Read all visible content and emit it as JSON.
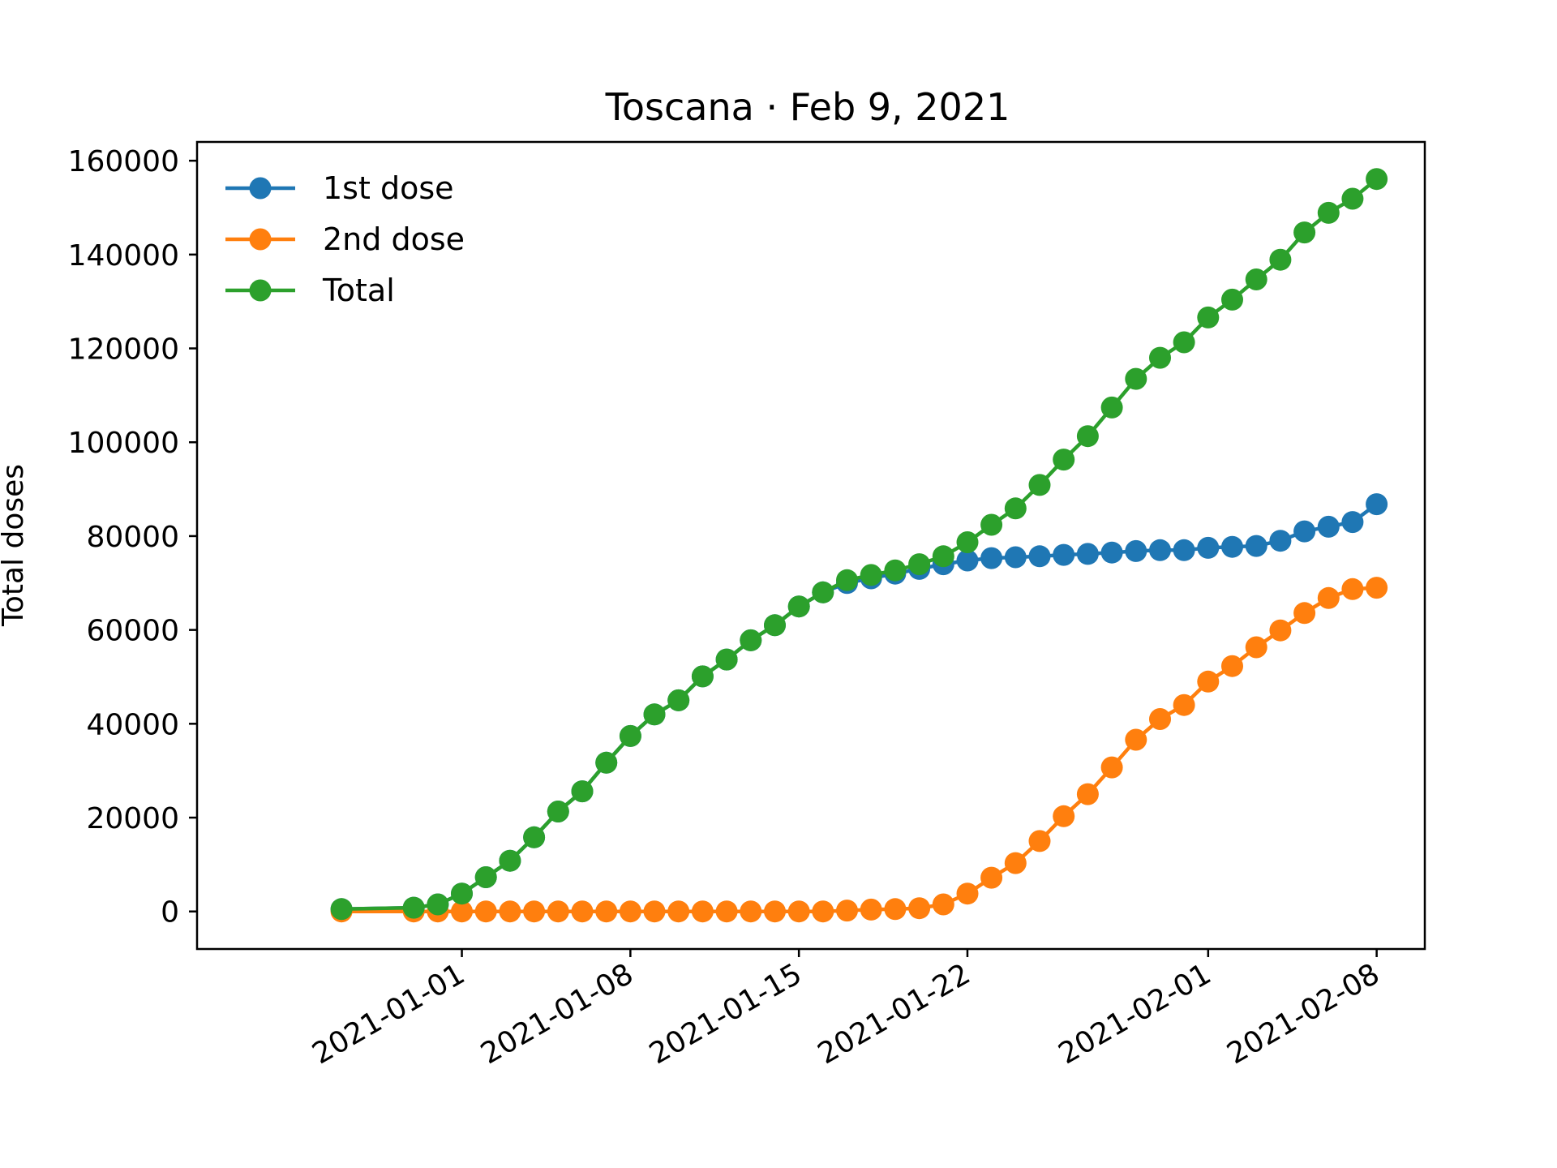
{
  "chart_data": {
    "type": "line",
    "title": "Toscana · Feb 9, 2021",
    "xlabel": "",
    "ylabel": "Total doses",
    "x_axis_type": "date",
    "xlim": [
      "2020-12-21",
      "2021-02-10"
    ],
    "ylim": [
      -8000,
      164000
    ],
    "xticks": [
      "2021-01-01",
      "2021-01-08",
      "2021-01-15",
      "2021-01-22",
      "2021-02-01",
      "2021-02-08"
    ],
    "yticks": [
      0,
      20000,
      40000,
      60000,
      80000,
      100000,
      120000,
      140000,
      160000
    ],
    "legend": {
      "position": "upper-left"
    },
    "grid": false,
    "x": [
      "2020-12-27",
      "2020-12-30",
      "2020-12-31",
      "2021-01-01",
      "2021-01-02",
      "2021-01-03",
      "2021-01-04",
      "2021-01-05",
      "2021-01-06",
      "2021-01-07",
      "2021-01-08",
      "2021-01-09",
      "2021-01-10",
      "2021-01-11",
      "2021-01-12",
      "2021-01-13",
      "2021-01-14",
      "2021-01-15",
      "2021-01-16",
      "2021-01-17",
      "2021-01-18",
      "2021-01-19",
      "2021-01-20",
      "2021-01-21",
      "2021-01-22",
      "2021-01-23",
      "2021-01-24",
      "2021-01-25",
      "2021-01-26",
      "2021-01-27",
      "2021-01-28",
      "2021-01-29",
      "2021-01-30",
      "2021-01-31",
      "2021-02-01",
      "2021-02-02",
      "2021-02-03",
      "2021-02-04",
      "2021-02-05",
      "2021-02-06",
      "2021-02-07",
      "2021-02-08"
    ],
    "series": [
      {
        "name": "1st dose",
        "color": "#1f77b4",
        "values": [
          500,
          800,
          1500,
          3800,
          7300,
          10800,
          15800,
          21300,
          25600,
          31700,
          37400,
          42000,
          45000,
          50100,
          53700,
          57800,
          61000,
          65000,
          68000,
          70000,
          71000,
          72000,
          73000,
          74000,
          74800,
          75300,
          75500,
          75700,
          76000,
          76200,
          76500,
          76800,
          77000,
          77000,
          77500,
          77700,
          77900,
          79000,
          81000,
          82000,
          83000,
          86800
        ]
      },
      {
        "name": "2nd dose",
        "color": "#ff7f0e",
        "values": [
          0,
          0,
          0,
          0,
          0,
          0,
          0,
          0,
          0,
          0,
          0,
          0,
          0,
          0,
          0,
          0,
          0,
          0,
          0,
          200,
          400,
          500,
          700,
          1500,
          3800,
          7200,
          10300,
          15000,
          20300,
          25000,
          30700,
          36600,
          41000,
          44000,
          49000,
          52300,
          56300,
          59900,
          63600,
          66800,
          68700,
          69000
        ]
      },
      {
        "name": "Total",
        "color": "#2ca02c",
        "values": [
          500,
          800,
          1500,
          3800,
          7300,
          10800,
          15800,
          21300,
          25600,
          31700,
          37400,
          42000,
          45000,
          50100,
          53700,
          57800,
          61000,
          65000,
          68000,
          70600,
          71700,
          72700,
          74000,
          75700,
          78700,
          82400,
          85900,
          90900,
          96300,
          101300,
          107400,
          113500,
          118000,
          121300,
          126600,
          130400,
          134700,
          138900,
          144700,
          148900,
          151900,
          156100
        ]
      }
    ]
  }
}
